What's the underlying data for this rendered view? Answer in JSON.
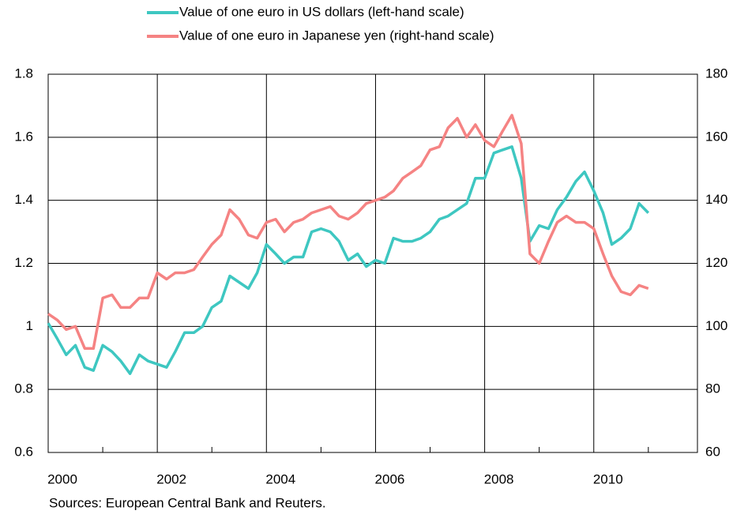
{
  "chart_data": {
    "type": "line",
    "x": [
      2000.0,
      2000.17,
      2000.33,
      2000.5,
      2000.67,
      2000.83,
      2001.0,
      2001.17,
      2001.33,
      2001.5,
      2001.67,
      2001.83,
      2002.0,
      2002.17,
      2002.33,
      2002.5,
      2002.67,
      2002.83,
      2003.0,
      2003.17,
      2003.33,
      2003.5,
      2003.67,
      2003.83,
      2004.0,
      2004.17,
      2004.33,
      2004.5,
      2004.67,
      2004.83,
      2005.0,
      2005.17,
      2005.33,
      2005.5,
      2005.67,
      2005.83,
      2006.0,
      2006.17,
      2006.33,
      2006.5,
      2006.67,
      2006.83,
      2007.0,
      2007.17,
      2007.33,
      2007.5,
      2007.67,
      2007.83,
      2008.0,
      2008.17,
      2008.33,
      2008.5,
      2008.67,
      2008.83,
      2009.0,
      2009.17,
      2009.33,
      2009.5,
      2009.67,
      2009.83,
      2010.0,
      2010.17,
      2010.33,
      2010.5,
      2010.67,
      2010.83,
      2011.0
    ],
    "series": [
      {
        "name": "Value of one euro in US dollars (left-hand scale)",
        "color": "#3ec7c1",
        "axis": "y",
        "values": [
          1.01,
          0.96,
          0.91,
          0.94,
          0.87,
          0.86,
          0.94,
          0.92,
          0.89,
          0.85,
          0.91,
          0.89,
          0.88,
          0.87,
          0.92,
          0.98,
          0.98,
          1.0,
          1.06,
          1.08,
          1.16,
          1.14,
          1.12,
          1.17,
          1.26,
          1.23,
          1.2,
          1.22,
          1.22,
          1.3,
          1.31,
          1.3,
          1.27,
          1.21,
          1.23,
          1.19,
          1.21,
          1.2,
          1.28,
          1.27,
          1.27,
          1.28,
          1.3,
          1.34,
          1.35,
          1.37,
          1.39,
          1.47,
          1.47,
          1.55,
          1.56,
          1.57,
          1.47,
          1.27,
          1.32,
          1.31,
          1.37,
          1.41,
          1.46,
          1.49,
          1.43,
          1.36,
          1.26,
          1.28,
          1.31,
          1.39,
          1.36
        ]
      },
      {
        "name": "Value of one euro in Japanese yen (right-hand scale)",
        "color": "#f58383",
        "axis": "y2",
        "values": [
          104,
          102,
          99,
          100,
          93,
          93,
          109,
          110,
          106,
          106,
          109,
          109,
          117,
          115,
          117,
          117,
          118,
          122,
          126,
          129,
          137,
          134,
          129,
          128,
          133,
          134,
          130,
          133,
          134,
          136,
          137,
          138,
          135,
          134,
          136,
          139,
          140,
          141,
          143,
          147,
          149,
          151,
          156,
          157,
          163,
          166,
          160,
          164,
          159,
          157,
          162,
          167,
          158,
          123,
          120,
          127,
          133,
          135,
          133,
          133,
          131,
          123,
          116,
          111,
          110,
          113,
          112
        ]
      }
    ],
    "xlim": [
      2000,
      2011.9
    ],
    "xticks": [
      2000,
      2002,
      2004,
      2006,
      2008,
      2010
    ],
    "xminorticks": [
      2001,
      2003,
      2005,
      2007,
      2009,
      2011
    ],
    "ylim": [
      0.6,
      1.8
    ],
    "yticks": [
      0.6,
      0.8,
      1,
      1.2,
      1.4,
      1.6,
      1.8
    ],
    "y2lim": [
      60,
      180
    ],
    "y2ticks": [
      60,
      80,
      100,
      120,
      140,
      160,
      180
    ],
    "grid": true,
    "legend": "top",
    "source": "Sources: European Central Bank and Reuters."
  }
}
